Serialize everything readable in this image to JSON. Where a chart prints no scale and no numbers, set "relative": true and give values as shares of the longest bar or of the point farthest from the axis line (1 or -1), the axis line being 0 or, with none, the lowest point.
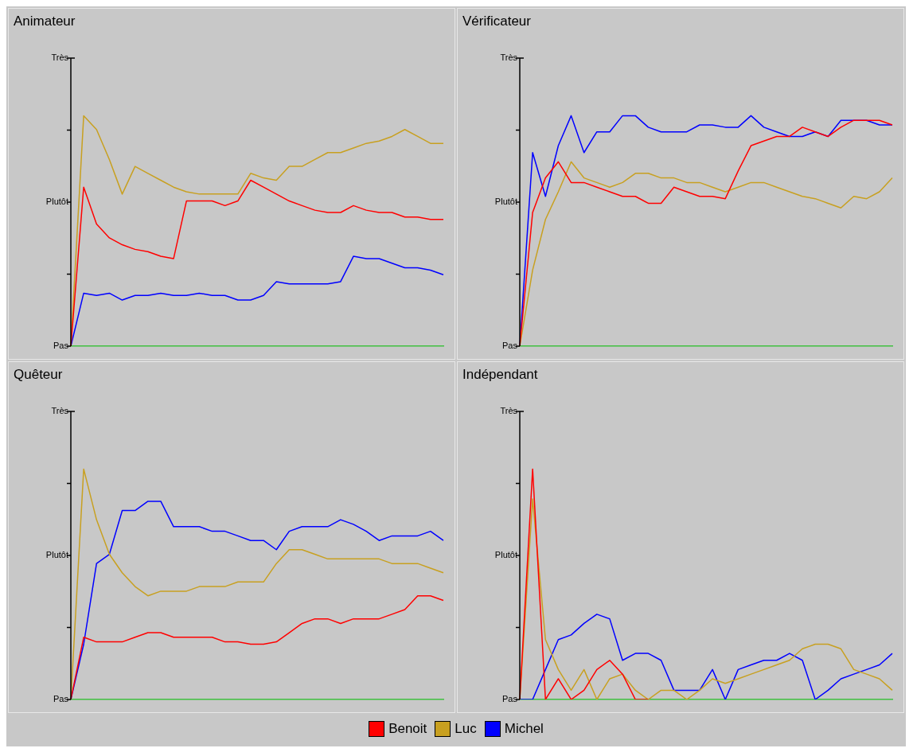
{
  "chart_data": [
    {
      "type": "line",
      "title": "Animateur",
      "relative": true,
      "annotations": [
        "Très",
        "Plutôt",
        "Pas"
      ],
      "categories": [
        null,
        null,
        null,
        null,
        null,
        null,
        null,
        null,
        null,
        null,
        null,
        null,
        null,
        null,
        null,
        null,
        null,
        null,
        null,
        null,
        null,
        null,
        null,
        null,
        null,
        null,
        null,
        null,
        null,
        null
      ],
      "legend": "bottom",
      "series": [
        {
          "name": "Benoit",
          "color": "#ff0000",
          "values": [
            0,
            0.69,
            0.53,
            0.47,
            0.44,
            0.42,
            0.41,
            0.39,
            0.38,
            0.63,
            0.63,
            0.63,
            0.61,
            0.63,
            0.72,
            0.69,
            0.66,
            0.63,
            0.61,
            0.59,
            0.58,
            0.58,
            0.61,
            0.59,
            0.58,
            0.58,
            0.56,
            0.56,
            0.55,
            0.55
          ]
        },
        {
          "name": "Luc",
          "color": "#c8a020",
          "values": [
            0,
            1,
            0.94,
            0.81,
            0.66,
            0.78,
            0.75,
            0.72,
            0.69,
            0.67,
            0.66,
            0.66,
            0.66,
            0.66,
            0.75,
            0.73,
            0.72,
            0.78,
            0.78,
            0.81,
            0.84,
            0.84,
            0.86,
            0.88,
            0.89,
            0.91,
            0.94,
            0.91,
            0.88,
            0.88
          ]
        },
        {
          "name": "Michel",
          "color": "#0000ff",
          "values": [
            0,
            0.23,
            0.22,
            0.23,
            0.2,
            0.22,
            0.22,
            0.23,
            0.22,
            0.22,
            0.23,
            0.22,
            0.22,
            0.2,
            0.2,
            0.22,
            0.28,
            0.27,
            0.27,
            0.27,
            0.27,
            0.28,
            0.39,
            0.38,
            0.38,
            0.36,
            0.34,
            0.34,
            0.33,
            0.31
          ]
        }
      ]
    },
    {
      "type": "line",
      "title": "Vérificateur",
      "relative": true,
      "annotations": [
        "Très",
        "Plutôt",
        "Pas"
      ],
      "categories": [
        null,
        null,
        null,
        null,
        null,
        null,
        null,
        null,
        null,
        null,
        null,
        null,
        null,
        null,
        null,
        null,
        null,
        null,
        null,
        null,
        null,
        null,
        null,
        null,
        null,
        null,
        null,
        null,
        null,
        null
      ],
      "legend": "bottom",
      "series": [
        {
          "name": "Benoit",
          "color": "#ff0000",
          "values": [
            0,
            0.58,
            0.73,
            0.8,
            0.71,
            0.71,
            0.69,
            0.67,
            0.65,
            0.65,
            0.62,
            0.62,
            0.69,
            0.67,
            0.65,
            0.65,
            0.64,
            0.76,
            0.87,
            0.89,
            0.91,
            0.91,
            0.95,
            0.93,
            0.91,
            0.95,
            0.98,
            0.98,
            0.98,
            0.96
          ]
        },
        {
          "name": "Luc",
          "color": "#c8a020",
          "values": [
            0,
            0.33,
            0.55,
            0.67,
            0.8,
            0.73,
            0.71,
            0.69,
            0.71,
            0.75,
            0.75,
            0.73,
            0.73,
            0.71,
            0.71,
            0.69,
            0.67,
            0.69,
            0.71,
            0.71,
            0.69,
            0.67,
            0.65,
            0.64,
            0.62,
            0.6,
            0.65,
            0.64,
            0.67,
            0.73
          ]
        },
        {
          "name": "Michel",
          "color": "#0000ff",
          "values": [
            0,
            0.84,
            0.65,
            0.87,
            1,
            0.84,
            0.93,
            0.93,
            1,
            1,
            0.95,
            0.93,
            0.93,
            0.93,
            0.96,
            0.96,
            0.95,
            0.95,
            1,
            0.95,
            0.93,
            0.91,
            0.91,
            0.93,
            0.91,
            0.98,
            0.98,
            0.98,
            0.96,
            0.96
          ]
        }
      ]
    },
    {
      "type": "line",
      "title": "Quêteur",
      "relative": true,
      "annotations": [
        "Très",
        "Plutôt",
        "Pas"
      ],
      "categories": [
        null,
        null,
        null,
        null,
        null,
        null,
        null,
        null,
        null,
        null,
        null,
        null,
        null,
        null,
        null,
        null,
        null,
        null,
        null,
        null,
        null,
        null,
        null,
        null,
        null,
        null,
        null,
        null,
        null,
        null
      ],
      "legend": "bottom",
      "series": [
        {
          "name": "Benoit",
          "color": "#ff0000",
          "values": [
            0,
            0.27,
            0.25,
            0.25,
            0.25,
            0.27,
            0.29,
            0.29,
            0.27,
            0.27,
            0.27,
            0.27,
            0.25,
            0.25,
            0.24,
            0.24,
            0.25,
            0.29,
            0.33,
            0.35,
            0.35,
            0.33,
            0.35,
            0.35,
            0.35,
            0.37,
            0.39,
            0.45,
            0.45,
            0.43
          ]
        },
        {
          "name": "Luc",
          "color": "#c8a020",
          "values": [
            0,
            1,
            0.78,
            0.63,
            0.55,
            0.49,
            0.45,
            0.47,
            0.47,
            0.47,
            0.49,
            0.49,
            0.49,
            0.51,
            0.51,
            0.51,
            0.59,
            0.65,
            0.65,
            0.63,
            0.61,
            0.61,
            0.61,
            0.61,
            0.61,
            0.59,
            0.59,
            0.59,
            0.57,
            0.55
          ]
        },
        {
          "name": "Michel",
          "color": "#0000ff",
          "values": [
            0,
            0.24,
            0.59,
            0.63,
            0.82,
            0.82,
            0.86,
            0.86,
            0.75,
            0.75,
            0.75,
            0.73,
            0.73,
            0.71,
            0.69,
            0.69,
            0.65,
            0.73,
            0.75,
            0.75,
            0.75,
            0.78,
            0.76,
            0.73,
            0.69,
            0.71,
            0.71,
            0.71,
            0.73,
            0.69
          ]
        }
      ]
    },
    {
      "type": "line",
      "title": "Indépendant",
      "relative": true,
      "annotations": [
        "Très",
        "Plutôt",
        "Pas"
      ],
      "categories": [
        null,
        null,
        null,
        null,
        null,
        null,
        null,
        null,
        null,
        null,
        null,
        null,
        null,
        null,
        null,
        null,
        null,
        null,
        null,
        null,
        null,
        null,
        null,
        null,
        null,
        null,
        null,
        null,
        null,
        null
      ],
      "legend": "bottom",
      "series": [
        {
          "name": "Benoit",
          "color": "#ff0000",
          "values": [
            0,
            1,
            0,
            0.09,
            0,
            0.04,
            0.13,
            0.17,
            0.11,
            0,
            0,
            null,
            null,
            null,
            null,
            null,
            null,
            null,
            null,
            null,
            null,
            null,
            null,
            null,
            null,
            null,
            null,
            null,
            null,
            null
          ]
        },
        {
          "name": "Luc",
          "color": "#c8a020",
          "values": [
            0,
            0.87,
            0.26,
            0.13,
            0.04,
            0.13,
            0,
            0.09,
            0.11,
            0.04,
            0,
            0.04,
            0.04,
            0,
            0.04,
            0.09,
            0.07,
            0.09,
            0.11,
            0.13,
            0.15,
            0.17,
            0.22,
            0.24,
            0.24,
            0.22,
            0.13,
            0.11,
            0.09,
            0.04
          ]
        },
        {
          "name": "Michel",
          "color": "#0000ff",
          "values": [
            0,
            0,
            0.13,
            0.26,
            0.28,
            0.33,
            0.37,
            0.35,
            0.17,
            0.2,
            0.2,
            0.17,
            0.04,
            0.04,
            0.04,
            0.13,
            0,
            0.13,
            0.15,
            0.17,
            0.17,
            0.2,
            0.17,
            0,
            0.04,
            0.09,
            0.11,
            0.13,
            0.15,
            0.2
          ]
        }
      ]
    }
  ]
}
